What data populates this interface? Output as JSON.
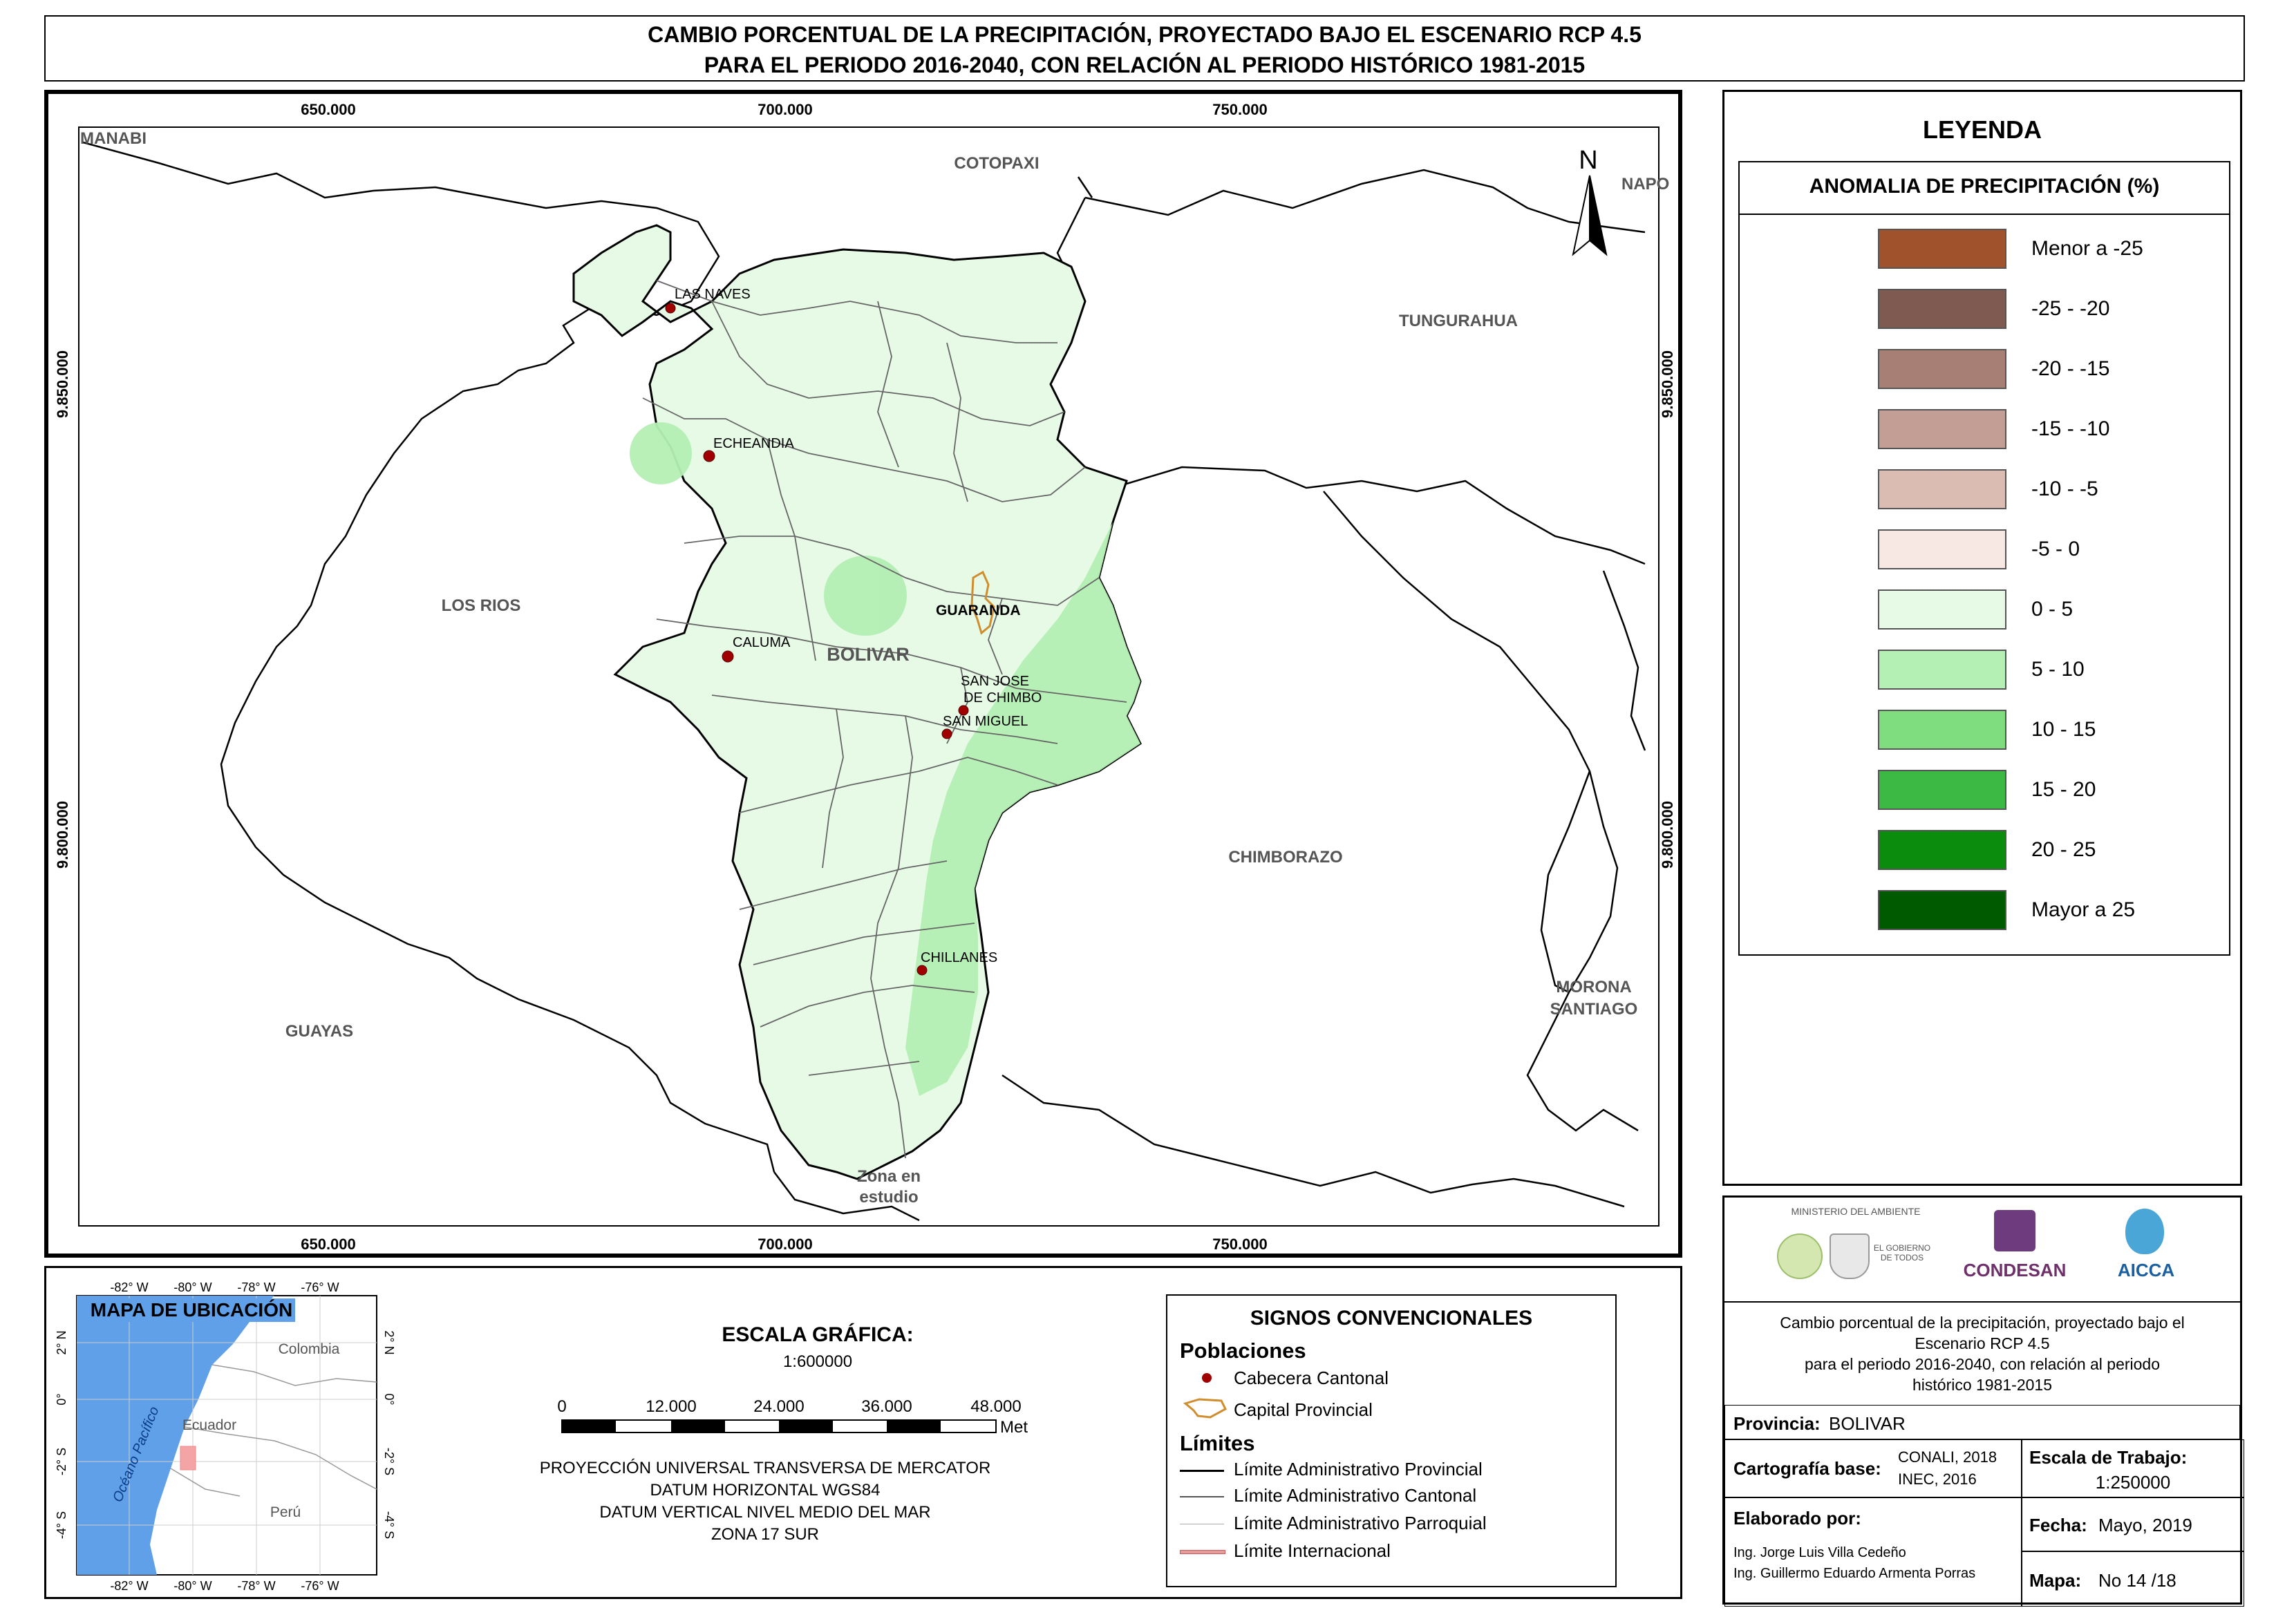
{
  "title": {
    "line1": "CAMBIO PORCENTUAL DE LA PRECIPITACIÓN, PROYECTADO BAJO EL ESCENARIO RCP 4.5",
    "line2": "PARA EL PERIODO 2016-2040, CON RELACIÓN AL PERIODO HISTÓRICO 1981-2015"
  },
  "map": {
    "grid_x": [
      "650.000",
      "700.000",
      "750.000"
    ],
    "grid_y": [
      "9.850.000",
      "9.800.000"
    ],
    "regions": [
      "MANABI",
      "COTOPAXI",
      "NAPO",
      "TUNGURAHUA",
      "LOS RIOS",
      "BOLIVAR",
      "CHIMBORAZO",
      "GUAYAS",
      "MORONA",
      "SANTIAGO",
      "Zona en",
      "estudio"
    ],
    "towns": [
      "LAS NAVES",
      "ECHEANDIA",
      "CALUMA",
      "SAN JOSE",
      "DE CHIMBO",
      "SAN MIGUEL",
      "CHILLANES"
    ],
    "capital": "GUARANDA",
    "north": "N"
  },
  "legend": {
    "title": "LEYENDA",
    "subtitle": "ANOMALIA DE PRECIPITACIÓN (%)",
    "items": [
      {
        "label": "Menor a -25",
        "color": "#a0522d"
      },
      {
        "label": "-25 - -20",
        "color": "#7f5a50"
      },
      {
        "label": "-20 - -15",
        "color": "#a87f74"
      },
      {
        "label": "-15 - -10",
        "color": "#c39e94"
      },
      {
        "label": "-10 - -5",
        "color": "#dbbcb2"
      },
      {
        "label": "-5 - 0",
        "color": "#f8e8e4"
      },
      {
        "label": "0 - 5",
        "color": "#e6fae6"
      },
      {
        "label": "5 - 10",
        "color": "#b4efb4"
      },
      {
        "label": "10 - 15",
        "color": "#7fdc7f"
      },
      {
        "label": "15 - 20",
        "color": "#3cb944"
      },
      {
        "label": "20 - 25",
        "color": "#0c8c0c"
      },
      {
        "label": "Mayor a 25",
        "color": "#005a00"
      }
    ]
  },
  "location_map": {
    "title": "MAPA DE UBICACIÓN",
    "lon_labels": [
      "-82° W",
      "-80° W",
      "-78° W",
      "-76° W"
    ],
    "lat_labels": [
      "2° N",
      "0°",
      "-2° S",
      "-4° S"
    ],
    "ocean": "Océano Pacífico",
    "countries": [
      "Colombia",
      "Ecuador",
      "Perú"
    ]
  },
  "scale": {
    "title": "ESCALA GRÁFICA:",
    "ratio": "1:600000",
    "ticks": [
      "0",
      "12.000",
      "24.000",
      "36.000",
      "48.000"
    ],
    "unit": "Metros",
    "projection": [
      "PROYECCIÓN UNIVERSAL TRANSVERSA DE MERCATOR",
      "DATUM HORIZONTAL WGS84",
      "DATUM VERTICAL NIVEL MEDIO DEL MAR",
      "ZONA 17 SUR"
    ]
  },
  "signs": {
    "title": "SIGNOS CONVENCIONALES",
    "poblaciones": "Poblaciones",
    "cabecera": "Cabecera Cantonal",
    "capital": "Capital Provincial",
    "limites": "Límites",
    "lim_prov": "Límite Administrativo Provincial",
    "lim_cant": "Límite Administrativo Cantonal",
    "lim_parr": "Límite Administrativo Parroquial",
    "lim_int": "Límite Internacional"
  },
  "info": {
    "logos": {
      "ministerio": "MINISTERIO DEL AMBIENTE",
      "gobierno": "EL GOBIERNO DE TODOS",
      "condesan": "CONDESAN",
      "aicca": "AICCA"
    },
    "description": [
      "Cambio porcentual de la precipitación, proyectado bajo el",
      "Escenario RCP 4.5",
      "para el periodo 2016-2040, con relación al periodo",
      "histórico 1981-2015"
    ],
    "provincia_label": "Provincia:",
    "provincia": "BOLIVAR",
    "cartografia_label": "Cartografía base:",
    "cartografia": [
      "CONALI, 2018",
      "INEC, 2016"
    ],
    "escala_label": "Escala de Trabajo:",
    "escala": "1:250000",
    "elaborado_label": "Elaborado por:",
    "autores": [
      "Ing. Jorge Luis Villa Cedeño",
      "Ing. Guillermo Eduardo Armenta Porras"
    ],
    "fecha_label": "Fecha:",
    "fecha": "Mayo, 2019",
    "mapa_label": "Mapa:",
    "mapa": "No 14 /18"
  }
}
